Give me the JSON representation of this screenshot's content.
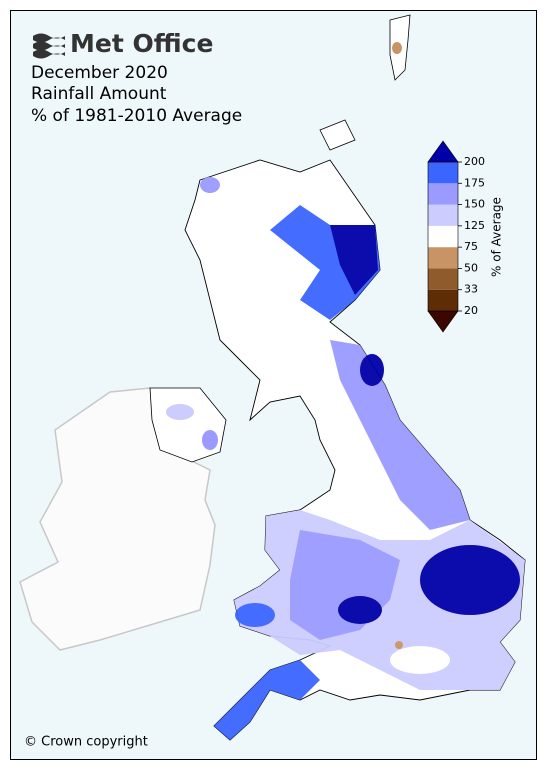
{
  "logo": "Met Office",
  "title": [
    "December 2020",
    "Rainfall Amount",
    "% of 1981-2010 Average"
  ],
  "legend": {
    "label": "% of Average",
    "ticks": [
      20,
      33,
      50,
      75,
      125,
      150,
      175,
      200
    ],
    "colors": [
      "#3b0800",
      "#5e2c05",
      "#8f5a2c",
      "#c99465",
      "#ffffff",
      "#ccccff",
      "#9a9aff",
      "#3a66ff",
      "#0000a8"
    ]
  },
  "copyright": "© Crown copyright"
}
